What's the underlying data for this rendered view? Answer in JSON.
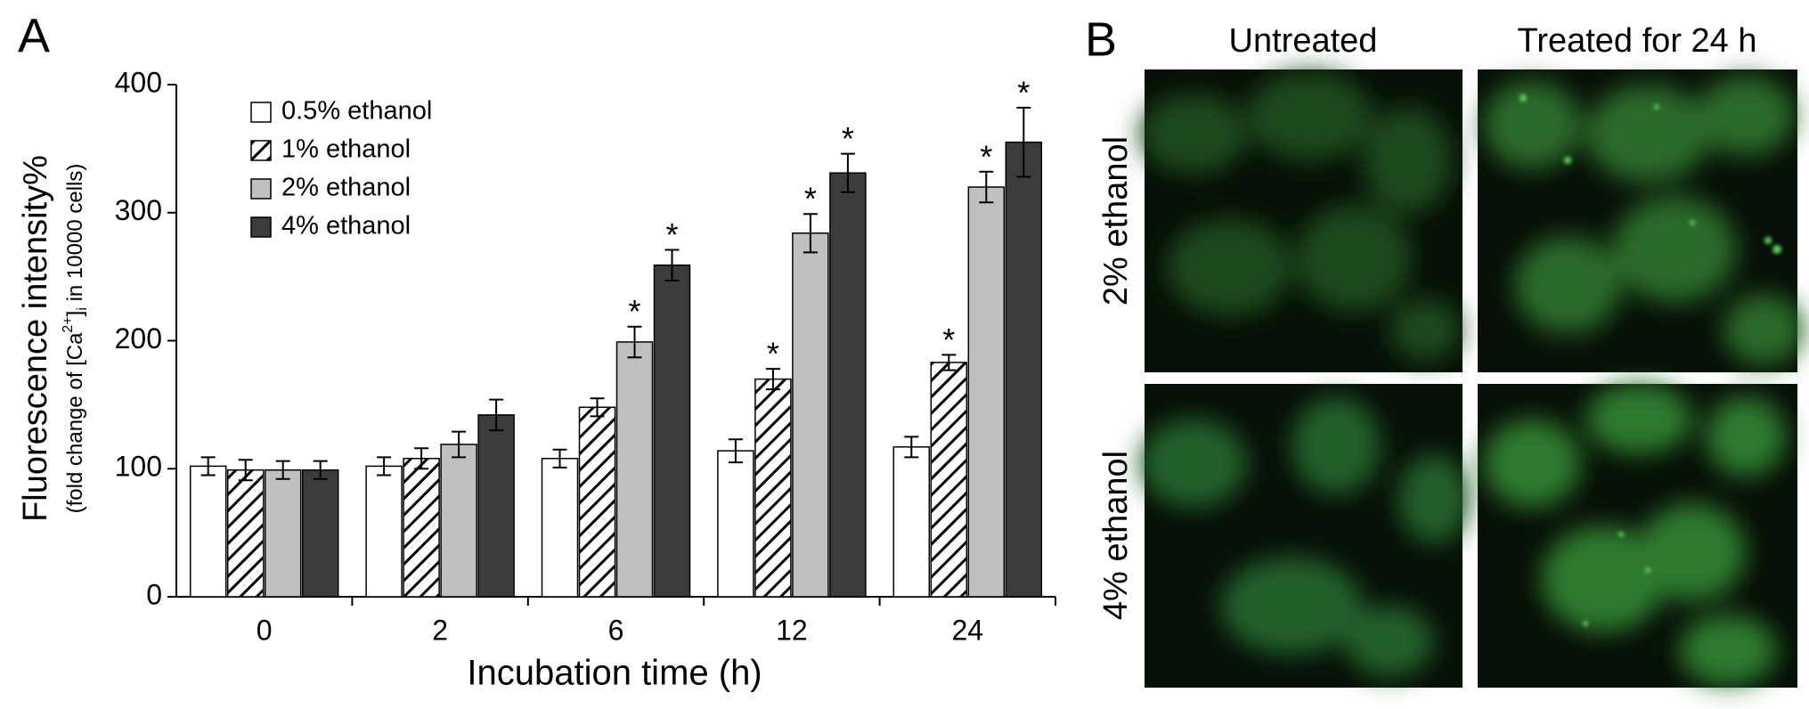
{
  "chart_data": {
    "type": "bar",
    "panel_label": "A",
    "y_label": "Fluorescence intensity%",
    "y_sublabel": [
      "(fold change of [Ca",
      "2+",
      "]",
      "i",
      " in 10000 cells)"
    ],
    "x_label": "Incubation time (h)",
    "categories": [
      "0",
      "2",
      "6",
      "12",
      "24"
    ],
    "ylim": [
      0,
      400
    ],
    "yticks": [
      0,
      100,
      200,
      300,
      400
    ],
    "series": [
      {
        "name": "0.5% ethanol",
        "color": "#ffffff",
        "values": [
          102,
          102,
          108,
          114,
          117
        ],
        "errors": [
          7,
          7,
          7,
          9,
          8
        ],
        "markers": [
          null,
          null,
          null,
          null,
          null
        ]
      },
      {
        "name": "1% ethanol",
        "color": "#ffffff",
        "pattern": "hatch",
        "values": [
          99,
          108,
          148,
          170,
          183
        ],
        "errors": [
          8,
          8,
          7,
          8,
          6
        ],
        "markers": [
          null,
          null,
          null,
          "*",
          "*"
        ]
      },
      {
        "name": "2% ethanol",
        "color": "#c0c0c0",
        "values": [
          99,
          119,
          199,
          284,
          320
        ],
        "errors": [
          7,
          10,
          12,
          15,
          12
        ],
        "markers": [
          null,
          null,
          "*",
          "*",
          "*"
        ]
      },
      {
        "name": "4% ethanol",
        "color": "#3c3c3c",
        "values": [
          99,
          142,
          259,
          331,
          355
        ],
        "errors": [
          7,
          12,
          12,
          15,
          27
        ],
        "markers": [
          null,
          null,
          "*",
          "*",
          "*"
        ]
      }
    ]
  },
  "panel_b": {
    "panel_label": "B",
    "columns": [
      "Untreated",
      "Treated for 24 h"
    ],
    "rows": [
      "2% ethanol",
      "4% ethanol"
    ]
  }
}
